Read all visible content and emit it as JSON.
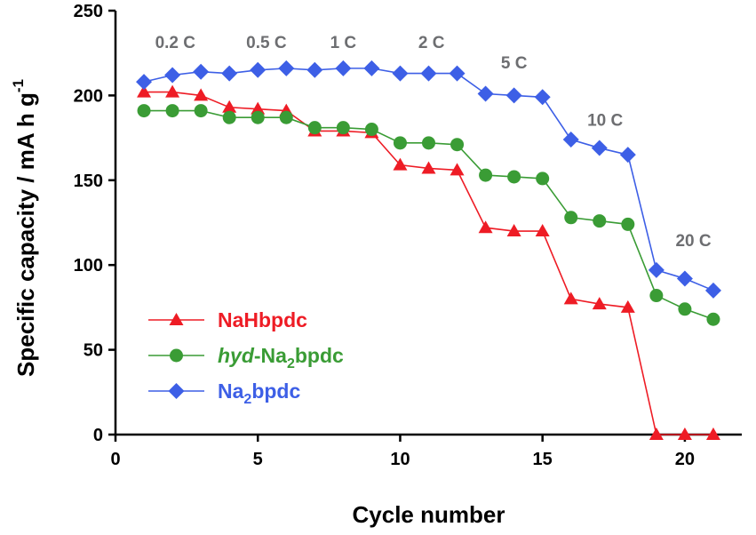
{
  "chart_data": {
    "type": "line",
    "title": "",
    "xlabel": "Cycle number",
    "ylabel": "Specific capacity / mA h g",
    "ylabel_sup": "-1",
    "xlim": [
      0,
      22
    ],
    "ylim": [
      0,
      250
    ],
    "xticks": [
      0,
      5,
      10,
      15,
      20
    ],
    "yticks": [
      0,
      50,
      100,
      150,
      200,
      250
    ],
    "grid": false,
    "legend_position": "bottom-left",
    "x": [
      1,
      2,
      3,
      4,
      5,
      6,
      7,
      8,
      9,
      10,
      11,
      12,
      13,
      14,
      15,
      16,
      17,
      18,
      19,
      20,
      21
    ],
    "series": [
      {
        "name": "NaHbpdc",
        "name_parts": [
          "NaHbpdc"
        ],
        "color": "#ee1c25",
        "marker": "triangle",
        "values": [
          202,
          202,
          200,
          193,
          192,
          191,
          179,
          179,
          178,
          159,
          157,
          156,
          122,
          120,
          120,
          80,
          77,
          75,
          0,
          0,
          0
        ]
      },
      {
        "name": "hyd-Na2bpdc",
        "name_parts": [
          "hyd",
          "-Na",
          "2",
          "bpdc"
        ],
        "color": "#3a9c35",
        "marker": "circle",
        "values": [
          191,
          191,
          191,
          187,
          187,
          187,
          181,
          181,
          180,
          172,
          172,
          171,
          153,
          152,
          151,
          128,
          126,
          124,
          82,
          74,
          68
        ]
      },
      {
        "name": "Na2bpdc",
        "name_parts": [
          "Na",
          "2",
          "bpdc"
        ],
        "color": "#3d5fe6",
        "marker": "diamond",
        "values": [
          208,
          212,
          214,
          213,
          215,
          216,
          215,
          216,
          216,
          213,
          213,
          213,
          201,
          200,
          199,
          174,
          169,
          165,
          97,
          92,
          85
        ]
      }
    ],
    "annotations": [
      {
        "text": "0.2 C",
        "x": 2.1,
        "y": 228
      },
      {
        "text": "0.5 C",
        "x": 5.3,
        "y": 228
      },
      {
        "text": "1 C",
        "x": 8.0,
        "y": 228
      },
      {
        "text": "2 C",
        "x": 11.1,
        "y": 228
      },
      {
        "text": "5 C",
        "x": 14.0,
        "y": 216
      },
      {
        "text": "10 C",
        "x": 17.2,
        "y": 182
      },
      {
        "text": "20 C",
        "x": 20.3,
        "y": 111
      }
    ]
  }
}
